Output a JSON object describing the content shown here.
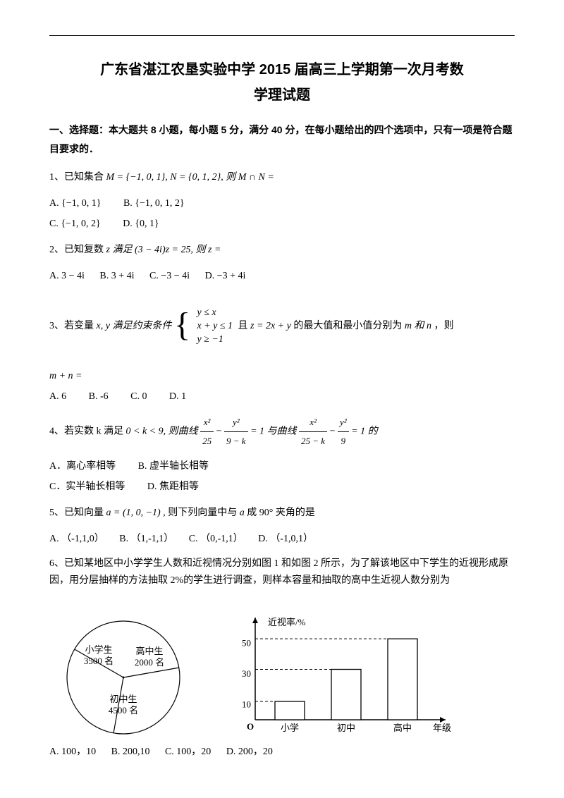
{
  "title_l1": "广东省湛江农垦实验中学 2015 届高三上学期第一次月考数",
  "title_l2": "学理试题",
  "section1": "一、选择题：本大题共 8 小题，每小题 5 分，满分 40 分，在每小题给出的四个选项中，只有一项是符合题目要求的．",
  "q1": {
    "stem_pre": "1、已知集合",
    "math": "M = {−1, 0, 1}, N = {0, 1, 2}, 则 M ∩ N =",
    "a": "A.  {−1, 0, 1}",
    "b": "B.  {−1, 0, 1, 2}",
    "c": "C.  {−1, 0, 2}",
    "d": "D.  {0, 1}"
  },
  "q2": {
    "stem_pre": "2、已知复数",
    "math": "z 满足 (3 − 4i)z = 25, 则 z =",
    "a": "A.  3 − 4i",
    "b": "B.  3 + 4i",
    "c": "C.  −3 − 4i",
    "d": "D.  −3 + 4i"
  },
  "q3": {
    "stem_pre": "3、若变量",
    "stem_mid": "x, y 满足约束条件",
    "c1": "y ≤ x",
    "c2": "x + y ≤ 1",
    "c3": "y ≥ −1",
    "stem_post1": "且",
    "stem_post2": "z = 2x + y",
    "stem_post3": "的最大值和最小值分别为",
    "stem_post4": "m 和 n",
    "stem_post5": "，则",
    "line2": "m + n =",
    "a": "A.  6",
    "b": "B. -6",
    "c": "C. 0",
    "d": "D. 1"
  },
  "q4": {
    "stem_pre": "4、若实数 k 满足",
    "stem_mid": "0 < k < 9, 则曲线",
    "f1n": "x²",
    "f1d": "25",
    "f2n": "y²",
    "f2d": "9 − k",
    "stem_mid2": "= 1 与曲线",
    "f3n": "x²",
    "f3d": "25 − k",
    "f4n": "y²",
    "f4d": "9",
    "stem_end": "= 1 的",
    "a": "A．离心率相等",
    "b": "B. 虚半轴长相等",
    "c": "C．实半轴长相等",
    "d": "D. 焦距相等"
  },
  "q5": {
    "stem_pre": "5、已知向量",
    "math": "a = (1, 0, −1)",
    "stem_post": ", 则下列向量中与",
    "math2": "a",
    "stem_post2": "成 90° 夹角的是",
    "a": "A. （-1,1,0）",
    "b": "B. （1,-1,1）",
    "c": "C. （0,-1,1）",
    "d": "D. （-1,0,1）"
  },
  "q6": {
    "stem": "6、已知某地区中小学学生人数和近视情况分别如图 1 和如图 2 所示，为了解该地区中下学生的近视形成原因，用分层抽样的方法抽取 2%的学生进行调查，则样本容量和抽取的高中生近视人数分别为",
    "a": "A. 100，10",
    "b": "B. 200,10",
    "c": "C. 100，20",
    "d": "D. 200，20"
  },
  "pie": {
    "labels": [
      "小学生",
      "3500 名",
      "高中生",
      "2000 名",
      "初中生",
      "4500 名"
    ],
    "stroke": "#000000",
    "fill": "#ffffff"
  },
  "bar": {
    "ylabel": "近视率/%",
    "xlabel": "年级",
    "yticks": [
      "10",
      "30",
      "50"
    ],
    "yvals": [
      10,
      30,
      50
    ],
    "categories": [
      "小学",
      "初中",
      "高中"
    ],
    "values": [
      12,
      33,
      53
    ],
    "ylim": [
      0,
      60
    ],
    "bar_fill": "#ffffff",
    "bar_stroke": "#000000",
    "axis_color": "#000000",
    "font_size": 13
  }
}
